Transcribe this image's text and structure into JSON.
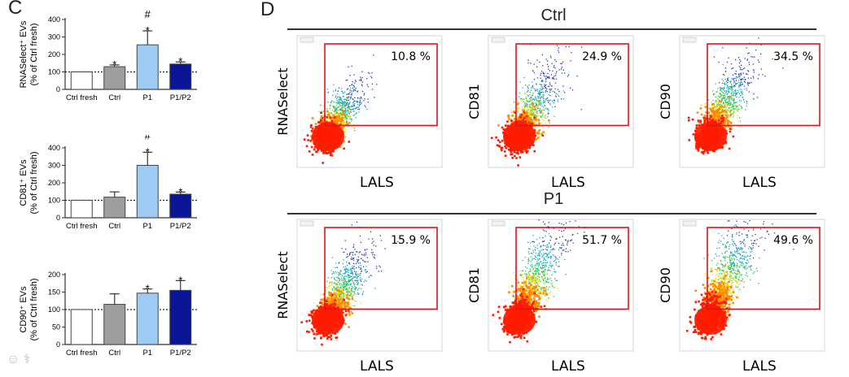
{
  "panel_c": {
    "label": "C"
  },
  "panel_d": {
    "label": "D"
  },
  "bar_colors": [
    "#ffffff",
    "#9e9e9e",
    "#9ecbf3",
    "#0a1496"
  ],
  "chart_data": [
    {
      "type": "bar",
      "ylabel_line1": "RNASelect⁺ EVs",
      "ylabel_line2": "(% of Ctrl fresh)",
      "categories": [
        "Ctrl fresh",
        "Ctrl",
        "P1",
        "P1/P2"
      ],
      "values": [
        100,
        130,
        255,
        145
      ],
      "errors": [
        0,
        10,
        80,
        12
      ],
      "annotations": [
        "",
        "*",
        "#\n*",
        "*"
      ],
      "yticks": [
        "0",
        "100",
        "200",
        "300",
        "400"
      ],
      "ylim": [
        0,
        400
      ],
      "reference_line": 100
    },
    {
      "type": "bar",
      "ylabel_line1": "CD81⁺ EVs",
      "ylabel_line2": "(% of Ctrl fresh)",
      "categories": [
        "Ctrl fresh",
        "Ctrl",
        "P1",
        "P1/P2"
      ],
      "values": [
        100,
        118,
        300,
        135
      ],
      "errors": [
        0,
        30,
        75,
        12
      ],
      "annotations": [
        "",
        "",
        "#\n*",
        "*"
      ],
      "yticks": [
        "0",
        "100",
        "200",
        "300",
        "400"
      ],
      "ylim": [
        0,
        400
      ],
      "reference_line": 100
    },
    {
      "type": "bar",
      "ylabel_line1": "CD90⁺ EVs",
      "ylabel_line2": "(% of Ctrl fresh)",
      "categories": [
        "Ctrl fresh",
        "Ctrl",
        "P1",
        "P1/P2"
      ],
      "values": [
        100,
        115,
        147,
        155
      ],
      "errors": [
        0,
        30,
        12,
        28
      ],
      "annotations": [
        "",
        "",
        "*",
        "*"
      ],
      "yticks": [
        "0",
        "50",
        "100",
        "150",
        "200"
      ],
      "ylim": [
        0,
        200
      ],
      "reference_line": 100
    }
  ],
  "flow_groups": [
    {
      "title": "Ctrl",
      "plots": [
        {
          "marker": "RNASelect",
          "percent": "10.8 %",
          "xlabel": "LALS",
          "spread": 0.28
        },
        {
          "marker": "CD81",
          "percent": "24.9 %",
          "xlabel": "LALS",
          "spread": 0.38
        },
        {
          "marker": "CD90",
          "percent": "34.5 %",
          "xlabel": "LALS",
          "spread": 0.45
        }
      ]
    },
    {
      "title": "P1",
      "plots": [
        {
          "marker": "RNASelect",
          "percent": "15.9 %",
          "xlabel": "LALS",
          "spread": 0.42
        },
        {
          "marker": "CD81",
          "percent": "51.7 %",
          "xlabel": "LALS",
          "spread": 0.62
        },
        {
          "marker": "CD90",
          "percent": "49.6 %",
          "xlabel": "LALS",
          "spread": 0.66
        }
      ]
    }
  ]
}
